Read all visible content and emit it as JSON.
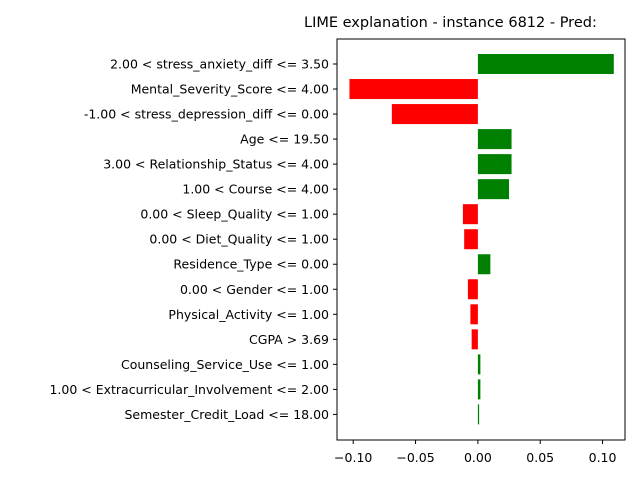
{
  "chart_data": {
    "type": "bar",
    "orientation": "horizontal",
    "title": "LIME explanation - instance 6812 - Pred:",
    "xlabel": "",
    "ylabel": "",
    "xlim": [
      -0.113,
      0.118
    ],
    "xticks": [
      -0.1,
      -0.05,
      0.0,
      0.05,
      0.1
    ],
    "xtick_labels": [
      "−0.10",
      "−0.05",
      "0.00",
      "0.05",
      "0.10"
    ],
    "grid": false,
    "positive_color": "#008000",
    "negative_color": "#ff0000",
    "categories": [
      "2.00 < stress_anxiety_diff <= 3.50",
      "Mental_Severity_Score <= 4.00",
      "-1.00 < stress_depression_diff <= 0.00",
      "Age <= 19.50",
      "3.00 < Relationship_Status <= 4.00",
      "1.00 < Course <= 4.00",
      "0.00 < Sleep_Quality <= 1.00",
      "0.00 < Diet_Quality <= 1.00",
      "Residence_Type <= 0.00",
      "0.00 < Gender <= 1.00",
      "Physical_Activity <= 1.00",
      "CGPA > 3.69",
      "Counseling_Service_Use <= 1.00",
      "1.00 < Extracurricular_Involvement <= 2.00",
      "Semester_Credit_Load <= 18.00"
    ],
    "values": [
      0.109,
      -0.103,
      -0.069,
      0.027,
      0.027,
      0.025,
      -0.012,
      -0.011,
      0.01,
      -0.008,
      -0.006,
      -0.005,
      0.002,
      0.002,
      0.001
    ]
  }
}
